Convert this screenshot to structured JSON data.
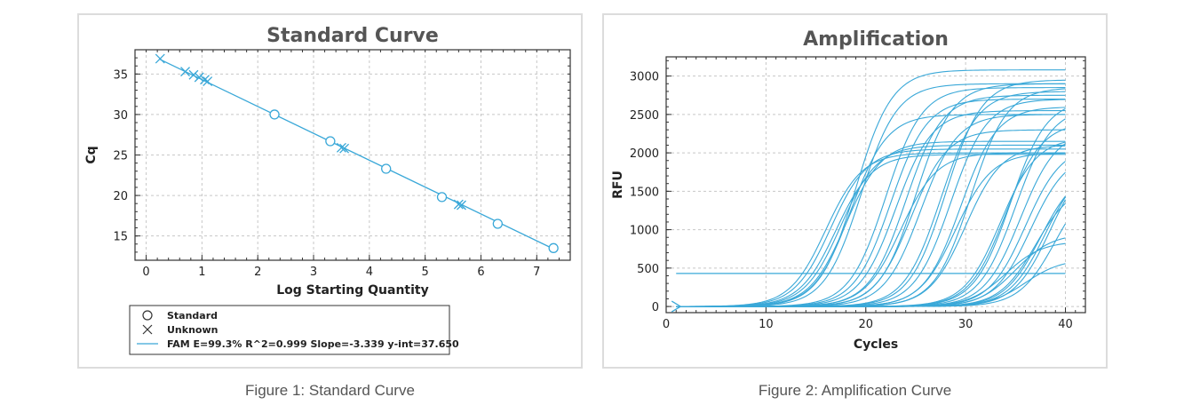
{
  "captions": {
    "fig1": "Figure 1: Standard Curve",
    "fig2": "Figure 2: Amplification Curve"
  },
  "colors": {
    "series": "#3aa8d8",
    "grid": "#c8c8c8",
    "border": "#dcdcdc"
  },
  "chart_data": [
    {
      "type": "scatter",
      "title": "Standard Curve",
      "xlabel": "Log Starting Quantity",
      "ylabel": "Cq",
      "xlim": [
        -0.2,
        7.6
      ],
      "ylim": [
        12,
        38
      ],
      "xticks": [
        0,
        1,
        2,
        3,
        4,
        5,
        6,
        7
      ],
      "yticks": [
        15,
        20,
        25,
        30,
        35
      ],
      "series": [
        {
          "name": "Standard",
          "marker": "circle",
          "x": [
            2.3,
            3.3,
            4.3,
            5.3,
            6.3,
            7.3
          ],
          "y": [
            30.0,
            26.7,
            23.3,
            19.8,
            16.5,
            13.5
          ]
        },
        {
          "name": "Unknown",
          "marker": "x",
          "x": [
            0.25,
            0.7,
            0.85,
            0.95,
            1.05,
            1.1,
            3.5,
            3.55,
            5.6,
            5.65
          ],
          "y": [
            36.9,
            35.3,
            34.9,
            34.6,
            34.3,
            34.1,
            25.9,
            25.8,
            18.9,
            18.8
          ]
        }
      ],
      "fit_line": {
        "x": [
          0.25,
          7.3
        ],
        "y": [
          36.8,
          13.4
        ]
      },
      "legend": {
        "standard_label": "Standard",
        "unknown_label": "Unknown",
        "fit_label": "FAM   E=99.3% R^2=0.999  Slope=-3.339  y-int=37.650"
      }
    },
    {
      "type": "line",
      "title": "Amplification",
      "xlabel": "Cycles",
      "ylabel": "RFU",
      "xlim": [
        0,
        42
      ],
      "ylim": [
        -80,
        3250
      ],
      "xticks": [
        0,
        10,
        20,
        30,
        40
      ],
      "yticks": [
        0,
        500,
        1000,
        1500,
        2000,
        2500,
        3000
      ],
      "threshold": 430,
      "cycle_range": [
        1,
        40
      ],
      "curves": [
        {
          "mid": 16.0,
          "plateau": 2000
        },
        {
          "mid": 16.5,
          "plateau": 2050
        },
        {
          "mid": 17.0,
          "plateau": 1980
        },
        {
          "mid": 17.5,
          "plateau": 2100
        },
        {
          "mid": 18.0,
          "plateau": 2150
        },
        {
          "mid": 18.5,
          "plateau": 2500
        },
        {
          "mid": 19.0,
          "plateau": 3080
        },
        {
          "mid": 19.5,
          "plateau": 2900
        },
        {
          "mid": 22.0,
          "plateau": 2850
        },
        {
          "mid": 22.5,
          "plateau": 2700
        },
        {
          "mid": 23.0,
          "plateau": 2550
        },
        {
          "mid": 23.5,
          "plateau": 2000
        },
        {
          "mid": 24.0,
          "plateau": 2750
        },
        {
          "mid": 24.5,
          "plateau": 2300
        },
        {
          "mid": 25.0,
          "plateau": 2900
        },
        {
          "mid": 25.5,
          "plateau": 2500
        },
        {
          "mid": 27.5,
          "plateau": 2800
        },
        {
          "mid": 28.0,
          "plateau": 2950
        },
        {
          "mid": 28.5,
          "plateau": 2700
        },
        {
          "mid": 29.0,
          "plateau": 2000
        },
        {
          "mid": 29.5,
          "plateau": 2600
        },
        {
          "mid": 30.0,
          "plateau": 2100
        },
        {
          "mid": 30.5,
          "plateau": 2850
        },
        {
          "mid": 33.5,
          "plateau": 2200
        },
        {
          "mid": 34.0,
          "plateau": 2400
        },
        {
          "mid": 34.5,
          "plateau": 2700
        },
        {
          "mid": 35.0,
          "plateau": 2600
        },
        {
          "mid": 35.5,
          "plateau": 2300
        },
        {
          "mid": 36.0,
          "plateau": 2100
        },
        {
          "mid": 36.5,
          "plateau": 2000
        },
        {
          "mid": 37.0,
          "plateau": 1600
        },
        {
          "mid": 37.5,
          "plateau": 1800
        },
        {
          "mid": 38.0,
          "plateau": 1900
        },
        {
          "mid": 38.5,
          "plateau": 2000
        },
        {
          "mid": 39.0,
          "plateau": 1700
        },
        {
          "mid": 34.0,
          "plateau": 850
        },
        {
          "mid": 35.0,
          "plateau": 950
        },
        {
          "mid": 36.0,
          "plateau": 620
        }
      ]
    }
  ]
}
